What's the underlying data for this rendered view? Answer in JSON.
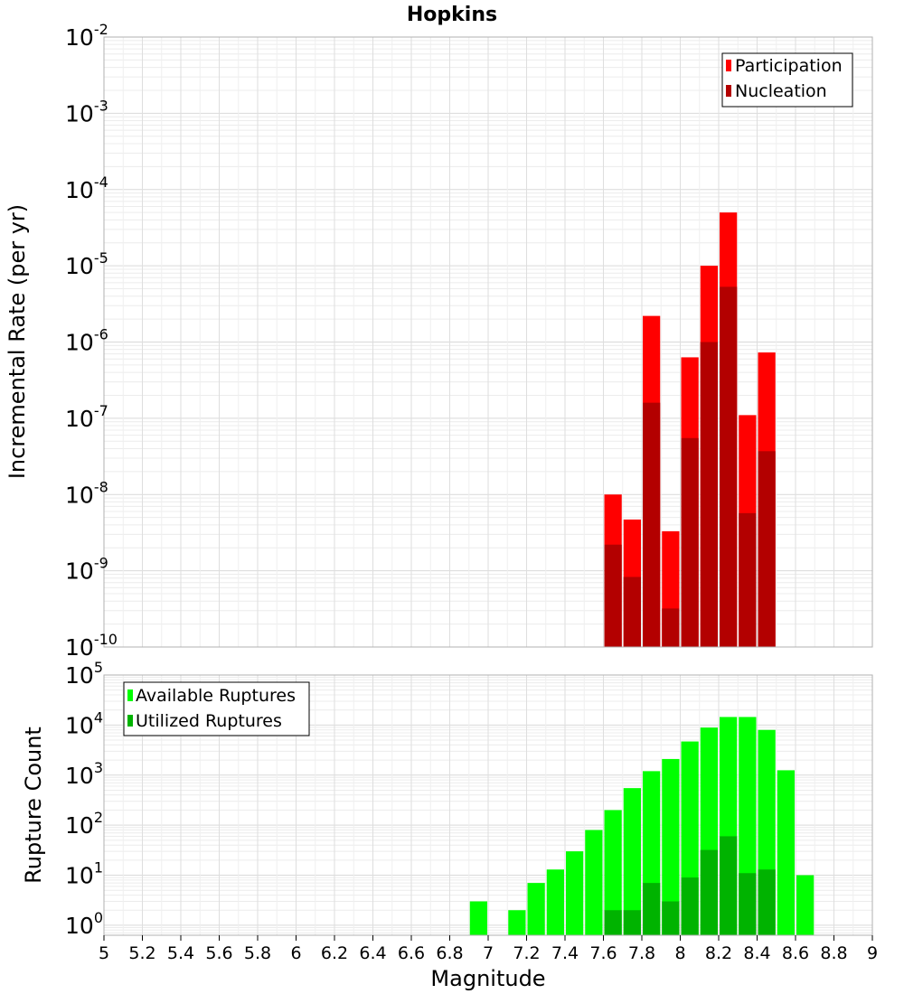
{
  "chart_data": [
    {
      "type": "bar",
      "title": "Hopkins",
      "ylabel": "Incremental Rate (per yr)",
      "xlabel": "",
      "yscale": "log",
      "ylim_exp": [
        -10,
        -2
      ],
      "ytick_exponents": [
        "-10",
        "-9",
        "-8",
        "-7",
        "-6",
        "-5",
        "-4",
        "-3",
        "-2"
      ],
      "xlim": [
        5,
        9
      ],
      "bin_width": 0.1,
      "grid": true,
      "legend_position": "top-right",
      "series": [
        {
          "name": "Participation",
          "color": "#ff0000",
          "x": [
            7.65,
            7.75,
            7.85,
            7.95,
            8.05,
            8.15,
            8.25,
            8.35,
            8.45
          ],
          "values": [
            1e-08,
            4.7e-09,
            2.2e-06,
            3.3e-09,
            6.3e-07,
            1e-05,
            5e-05,
            1.1e-07,
            7.3e-07
          ]
        },
        {
          "name": "Nucleation",
          "color": "#b30000",
          "x": [
            7.65,
            7.75,
            7.85,
            7.95,
            8.05,
            8.15,
            8.25,
            8.35,
            8.45
          ],
          "values": [
            2.2e-09,
            8.3e-10,
            1.6e-07,
            3.2e-10,
            5.5e-08,
            1e-06,
            5.3e-06,
            5.7e-09,
            3.7e-08
          ]
        }
      ]
    },
    {
      "type": "bar",
      "title": "",
      "ylabel": "Rupture Count",
      "xlabel": "Magnitude",
      "yscale": "log",
      "ylim_exp": [
        -0.2,
        5
      ],
      "ytick_exponents": [
        "0",
        "1",
        "2",
        "3",
        "4",
        "5"
      ],
      "xlim": [
        5,
        9
      ],
      "xticks": [
        "5",
        "5.2",
        "5.4",
        "5.6",
        "5.8",
        "6",
        "6.2",
        "6.4",
        "6.6",
        "6.8",
        "7",
        "7.2",
        "7.4",
        "7.6",
        "7.8",
        "8",
        "8.2",
        "8.4",
        "8.6",
        "8.8",
        "9"
      ],
      "bin_width": 0.1,
      "grid": true,
      "legend_position": "top-left",
      "series": [
        {
          "name": "Available Ruptures",
          "color": "#00ff00",
          "x": [
            6.95,
            7.15,
            7.25,
            7.35,
            7.45,
            7.55,
            7.65,
            7.75,
            7.85,
            7.95,
            8.05,
            8.15,
            8.25,
            8.35,
            8.45,
            8.55,
            8.65
          ],
          "values": [
            3,
            2,
            7,
            13,
            30,
            80,
            200,
            550,
            1200,
            2100,
            4700,
            8900,
            14500,
            14500,
            8000,
            1250,
            10
          ]
        },
        {
          "name": "Utilized Ruptures",
          "color": "#00b300",
          "x": [
            7.65,
            7.75,
            7.85,
            7.95,
            8.05,
            8.15,
            8.25,
            8.35,
            8.45
          ],
          "values": [
            2,
            2,
            7,
            3,
            9,
            32,
            60,
            11,
            13
          ]
        }
      ]
    }
  ]
}
